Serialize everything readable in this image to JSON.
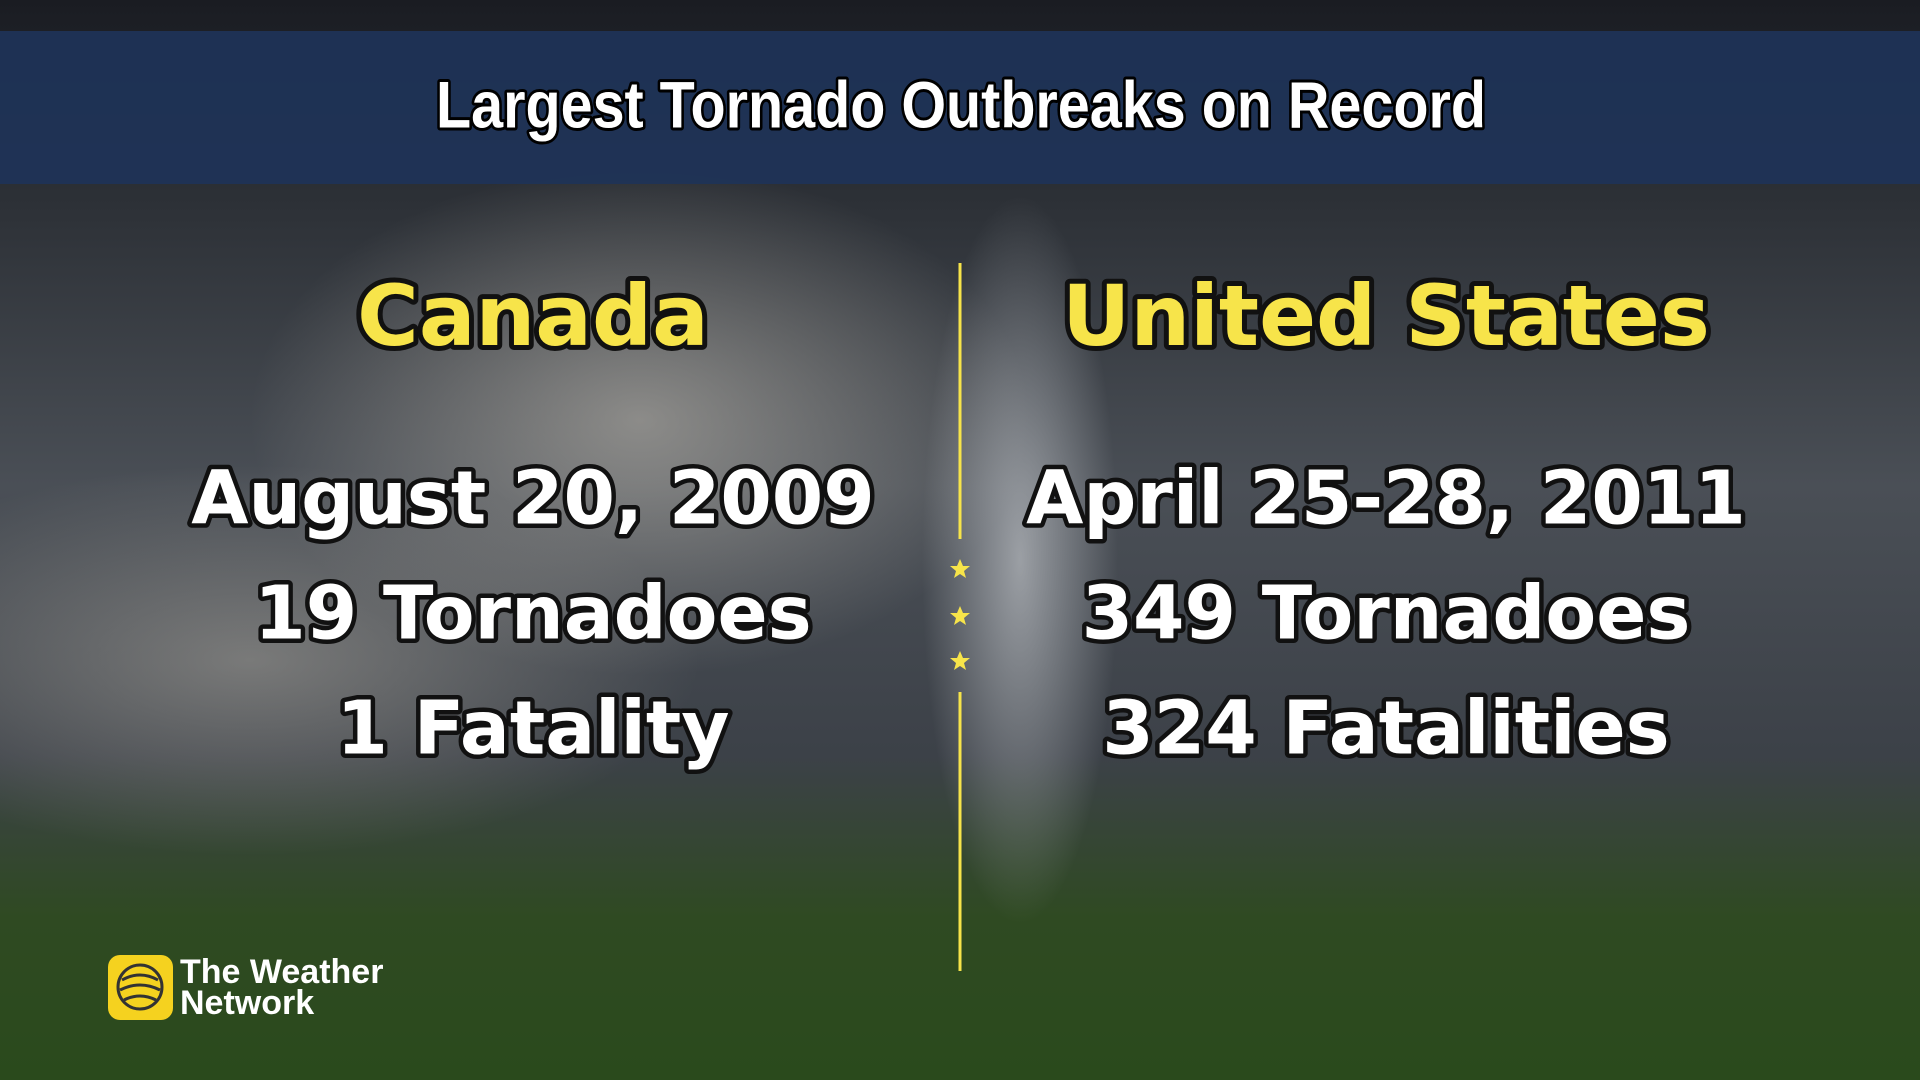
{
  "header": {
    "title": "Largest Tornado Outbreaks on Record"
  },
  "columns": [
    {
      "heading": "Canada",
      "date": "August 20, 2009",
      "tornadoes": "19 Tornadoes",
      "fatalities": "1 Fatality"
    },
    {
      "heading": "United States",
      "date": "April 25-28, 2011",
      "tornadoes": "349 Tornadoes",
      "fatalities": "324 Fatalities"
    }
  ],
  "logo": {
    "lines": [
      "The Weather",
      "Network"
    ]
  }
}
